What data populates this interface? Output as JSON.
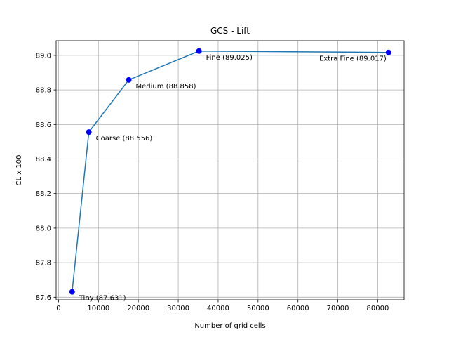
{
  "chart_data": {
    "type": "line",
    "title": "GCS - Lift",
    "xlabel": "Number of grid cells",
    "ylabel": "CL x 100",
    "xlim": [
      -600,
      86600
    ],
    "ylim": [
      87.585,
      89.085
    ],
    "xticks": [
      0,
      10000,
      20000,
      30000,
      40000,
      50000,
      60000,
      70000,
      80000
    ],
    "yticks": [
      87.6,
      87.8,
      88.0,
      88.2,
      88.4,
      88.6,
      88.8,
      89.0
    ],
    "grid": true,
    "series": [
      {
        "x": [
          3400,
          7600,
          17600,
          35200,
          82700
        ],
        "y": [
          87.631,
          88.556,
          88.858,
          89.025,
          89.017
        ],
        "line_color": "#1f77b4",
        "marker_color": "#0000ff"
      }
    ],
    "annotations": [
      {
        "text": "Tiny (87.631)",
        "point": 0,
        "anchor": "start"
      },
      {
        "text": "Coarse (88.556)",
        "point": 1,
        "anchor": "start"
      },
      {
        "text": "Medium (88.858)",
        "point": 2,
        "anchor": "start"
      },
      {
        "text": "Fine (89.025)",
        "point": 3,
        "anchor": "start"
      },
      {
        "text": "Extra Fine (89.017)",
        "point": 4,
        "anchor": "end"
      }
    ]
  }
}
